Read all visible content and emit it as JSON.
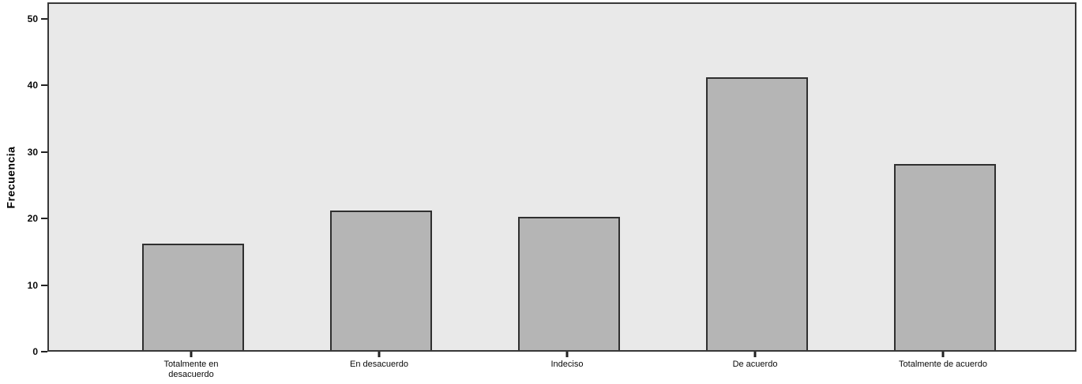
{
  "chart_data": {
    "type": "bar",
    "title": "",
    "xlabel": "",
    "ylabel": "Frecuencia",
    "categories": [
      "Totalmente en desacuerdo",
      "En desacuerdo",
      "Indeciso",
      "De acuerdo",
      "Totalmente de acuerdo"
    ],
    "values": [
      16,
      21,
      20,
      41,
      28
    ],
    "yticks": [
      0,
      10,
      20,
      30,
      40,
      50
    ],
    "ylim": [
      0,
      52.5
    ],
    "grid": false,
    "legend": "none",
    "colors": {
      "bar_fill": "#b5b5b5",
      "bar_border": "#2f2f2f",
      "plot_background": "#e9e9e9",
      "frame_border": "#383838",
      "page_background": "#ffffff",
      "text": "#0a0a0a"
    }
  }
}
